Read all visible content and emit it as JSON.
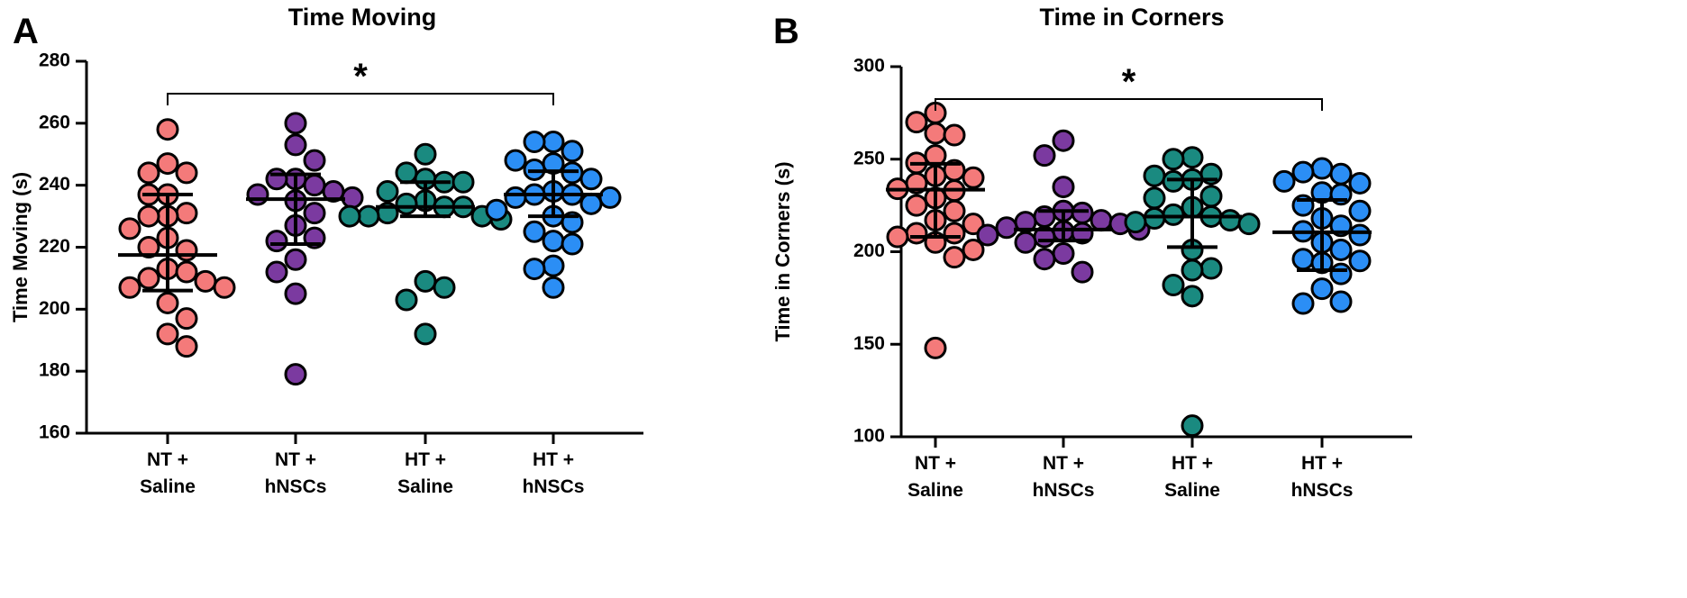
{
  "chart_data": [
    {
      "type": "scatter",
      "panel_label": "A",
      "title": "Time Moving",
      "ylabel": "Time Moving (s)",
      "ylim": [
        160,
        280
      ],
      "yticks": [
        160,
        180,
        200,
        220,
        240,
        260,
        280
      ],
      "categories": [
        "NT +\nSaline",
        "NT +\nhNSCs",
        "HT +\nSaline",
        "HT +\nhNSCs"
      ],
      "colors": [
        "#f47a7a",
        "#7b3aa0",
        "#1a8a80",
        "#2b8ef5"
      ],
      "series": [
        {
          "values": [
            258,
            247,
            244,
            244,
            237,
            237,
            231,
            230,
            230,
            226,
            223,
            220,
            219,
            213,
            212,
            210,
            209,
            207,
            207,
            202,
            197,
            192,
            188
          ],
          "mean": 217.5,
          "err_low": 206,
          "err_high": 237
        },
        {
          "values": [
            260,
            253,
            248,
            242,
            242,
            240,
            238,
            237,
            236,
            235,
            231,
            227,
            223,
            222,
            216,
            212,
            205,
            179
          ],
          "mean": 235.5,
          "err_low": 221,
          "err_high": 243.5
        },
        {
          "values": [
            250,
            244,
            242,
            241,
            241,
            238,
            235,
            234,
            233,
            233,
            231,
            230,
            230,
            230,
            229,
            209,
            207,
            203,
            192
          ],
          "mean": 233,
          "err_low": 230,
          "err_high": 241
        },
        {
          "values": [
            254,
            254,
            251,
            248,
            247,
            245,
            244,
            242,
            238,
            237,
            237,
            236,
            236,
            234,
            232,
            230,
            228,
            225,
            222,
            221,
            214,
            213,
            207
          ],
          "mean": 237,
          "err_low": 230,
          "err_high": 244.5
        }
      ],
      "significance": {
        "from": 0,
        "to": 3,
        "label": "*",
        "y": 270.5
      }
    },
    {
      "type": "scatter",
      "panel_label": "B",
      "title": "Time in Corners",
      "ylabel": "Time in Corners (s)",
      "ylim": [
        100,
        300
      ],
      "yticks": [
        100,
        150,
        200,
        250,
        300
      ],
      "categories": [
        "NT +\nSaline",
        "NT +\nhNSCs",
        "HT +\nSaline",
        "HT +\nhNSCs"
      ],
      "colors": [
        "#f47a7a",
        "#7b3aa0",
        "#1a8a80",
        "#2b8ef5"
      ],
      "series": [
        {
          "values": [
            275,
            270,
            264,
            263,
            252,
            248,
            244,
            241,
            240,
            237,
            234,
            233,
            229,
            225,
            222,
            217,
            215,
            210,
            210,
            208,
            205,
            201,
            197,
            148
          ],
          "mean": 233.5,
          "err_low": 208,
          "err_high": 247.5
        },
        {
          "values": [
            260,
            252,
            235,
            222,
            221,
            219,
            217,
            216,
            215,
            213,
            212,
            211,
            210,
            209,
            208,
            205,
            199,
            196,
            189
          ],
          "mean": 212,
          "err_low": 206,
          "err_high": 222
        },
        {
          "values": [
            251,
            250,
            242,
            241,
            239,
            238,
            230,
            229,
            224,
            220,
            219,
            218,
            217,
            216,
            215,
            201,
            191,
            190,
            182,
            176,
            106
          ],
          "mean": 219,
          "err_low": 202.5,
          "err_high": 239
        },
        {
          "values": [
            245,
            243,
            242,
            238,
            237,
            232,
            231,
            225,
            222,
            218,
            214,
            211,
            209,
            205,
            201,
            196,
            195,
            194,
            188,
            180,
            173,
            172
          ],
          "mean": 210.5,
          "err_low": 190,
          "err_high": 228
        }
      ],
      "significance": {
        "from": 0,
        "to": 3,
        "label": "*",
        "y": 290.5
      }
    }
  ]
}
